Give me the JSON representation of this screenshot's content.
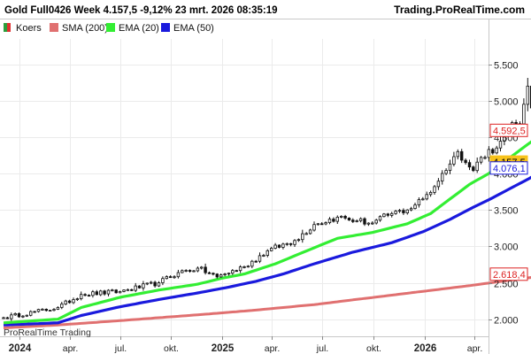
{
  "header": {
    "title": "Gold Full0426 Week 4.157,5 -9,12% 23 mrt. 2026 08:35:19",
    "source": "Trading.ProRealTime.com"
  },
  "watermark": "ProRealTime Trading",
  "chart_data": {
    "type": "candlestick",
    "title": "Gold Full0426 Week",
    "last_price": "4.157,5",
    "change": "-9,12%",
    "timestamp": "23 mrt. 2026 08:35:19",
    "interval": "Week",
    "y_range": [
      1850,
      5750
    ],
    "y_ticks": [
      2000,
      2500,
      3000,
      3500,
      4000,
      4500,
      5000,
      5500
    ],
    "y_tick_labels": [
      "2.000",
      "2.500",
      "3.000",
      "3.500",
      "4.000",
      "4.500",
      "5.000",
      "5.500"
    ],
    "x_range": [
      "2023-12-04",
      "2026-04-20"
    ],
    "x_ticks": [
      {
        "date": "2024-01-01",
        "label": "2024",
        "bold": true
      },
      {
        "date": "2024-04-01",
        "label": "apr.",
        "bold": false
      },
      {
        "date": "2024-07-01",
        "label": "jul.",
        "bold": false
      },
      {
        "date": "2024-10-01",
        "label": "okt.",
        "bold": false
      },
      {
        "date": "2025-01-01",
        "label": "2025",
        "bold": true
      },
      {
        "date": "2025-04-01",
        "label": "apr.",
        "bold": false
      },
      {
        "date": "2025-07-01",
        "label": "jul.",
        "bold": false
      },
      {
        "date": "2025-10-01",
        "label": "okt.",
        "bold": false
      },
      {
        "date": "2026-01-01",
        "label": "2026",
        "bold": true
      },
      {
        "date": "2026-04-01",
        "label": "apr.",
        "bold": false
      }
    ],
    "legend": [
      {
        "name": "Koers",
        "color": "#3aa84a"
      },
      {
        "name": "SMA (200)",
        "color": "#e07070"
      },
      {
        "name": "EMA (20)",
        "color": "#33ee33"
      },
      {
        "name": "EMA (50)",
        "color": "#1a1add"
      }
    ],
    "price_labels": [
      {
        "series": "EMA (20)",
        "value": 4592.5,
        "label": "4.592,5",
        "color": "#dd2222",
        "bg": "#ffffff",
        "border": "#dd2222"
      },
      {
        "series": "Koers",
        "value": 4157.5,
        "label": "4.157,5",
        "color": "#000000",
        "bg": "#f7c21b",
        "border": "#f7c21b"
      },
      {
        "series": "EMA (50)",
        "value": 4076.1,
        "label": "4.076,1",
        "color": "#1a1add",
        "bg": "#ffffff",
        "border": "#1a1add"
      },
      {
        "series": "SMA (200)",
        "value": 2618.4,
        "label": "2.618,4",
        "color": "#dd2222",
        "bg": "#ffffff",
        "border": "#dd2222"
      }
    ],
    "anchors": {
      "start": "2023-12-04",
      "close": [
        [
          0,
          2020
        ],
        [
          14,
          2160
        ],
        [
          20,
          2340
        ],
        [
          30,
          2380
        ],
        [
          40,
          2500
        ],
        [
          45,
          2640
        ],
        [
          50,
          2700
        ],
        [
          55,
          2580
        ],
        [
          62,
          2720
        ],
        [
          68,
          2940
        ],
        [
          75,
          3080
        ],
        [
          80,
          3300
        ],
        [
          86,
          3400
        ],
        [
          91,
          3350
        ],
        [
          95,
          3320
        ],
        [
          100,
          3450
        ],
        [
          104,
          3500
        ],
        [
          108,
          3650
        ],
        [
          111,
          3820
        ],
        [
          113,
          4000
        ],
        [
          115,
          4130
        ],
        [
          117,
          4300
        ],
        [
          119,
          4150
        ],
        [
          121,
          4040
        ],
        [
          123,
          4220
        ],
        [
          125,
          4330
        ],
        [
          127,
          4350
        ],
        [
          129,
          4550
        ],
        [
          131,
          4700
        ],
        [
          133,
          4680
        ],
        [
          134,
          4950
        ],
        [
          135,
          5200
        ],
        [
          136,
          4900
        ],
        [
          137,
          5000
        ],
        [
          138,
          5100
        ],
        [
          139,
          5200
        ],
        [
          140,
          5080
        ],
        [
          141,
          5000
        ],
        [
          142,
          4570
        ],
        [
          143,
          4157.5
        ]
      ],
      "sma200": [
        [
          0,
          1880
        ],
        [
          14,
          1920
        ],
        [
          30,
          1980
        ],
        [
          50,
          2060
        ],
        [
          64,
          2120
        ],
        [
          80,
          2200
        ],
        [
          100,
          2330
        ],
        [
          120,
          2460
        ],
        [
          134,
          2560
        ],
        [
          143,
          2618.4
        ]
      ],
      "ema20": [
        [
          0,
          1950
        ],
        [
          14,
          2000
        ],
        [
          20,
          2160
        ],
        [
          30,
          2300
        ],
        [
          40,
          2400
        ],
        [
          50,
          2480
        ],
        [
          56,
          2560
        ],
        [
          62,
          2620
        ],
        [
          70,
          2760
        ],
        [
          80,
          2980
        ],
        [
          86,
          3110
        ],
        [
          95,
          3190
        ],
        [
          104,
          3310
        ],
        [
          110,
          3450
        ],
        [
          115,
          3650
        ],
        [
          120,
          3850
        ],
        [
          125,
          4000
        ],
        [
          130,
          4200
        ],
        [
          135,
          4400
        ],
        [
          140,
          4590
        ],
        [
          142,
          4592.5
        ],
        [
          143,
          4592.5
        ]
      ],
      "ema50": [
        [
          0,
          1920
        ],
        [
          14,
          1950
        ],
        [
          20,
          2050
        ],
        [
          30,
          2170
        ],
        [
          40,
          2270
        ],
        [
          50,
          2360
        ],
        [
          58,
          2440
        ],
        [
          65,
          2520
        ],
        [
          72,
          2620
        ],
        [
          80,
          2760
        ],
        [
          90,
          2920
        ],
        [
          100,
          3050
        ],
        [
          108,
          3200
        ],
        [
          115,
          3370
        ],
        [
          120,
          3510
        ],
        [
          125,
          3640
        ],
        [
          130,
          3780
        ],
        [
          135,
          3920
        ],
        [
          140,
          4070
        ],
        [
          142,
          4076.1
        ],
        [
          143,
          4076.1
        ]
      ]
    }
  }
}
